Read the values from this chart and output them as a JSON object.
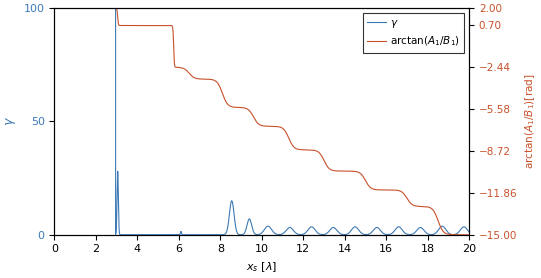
{
  "xlim": [
    0,
    20
  ],
  "ylim_left": [
    0,
    100
  ],
  "ylim_right": [
    -15,
    2
  ],
  "yticks_left": [
    0,
    50,
    100
  ],
  "yticks_right": [
    2,
    0.7,
    -2.44,
    -5.58,
    -8.72,
    -11.86,
    -15
  ],
  "xticks": [
    0,
    2,
    4,
    6,
    8,
    10,
    12,
    14,
    16,
    18,
    20
  ],
  "color_blue": "#3d7ab5",
  "color_orange": "#c8502a",
  "figsize": [
    5.41,
    2.78
  ],
  "dpi": 100
}
